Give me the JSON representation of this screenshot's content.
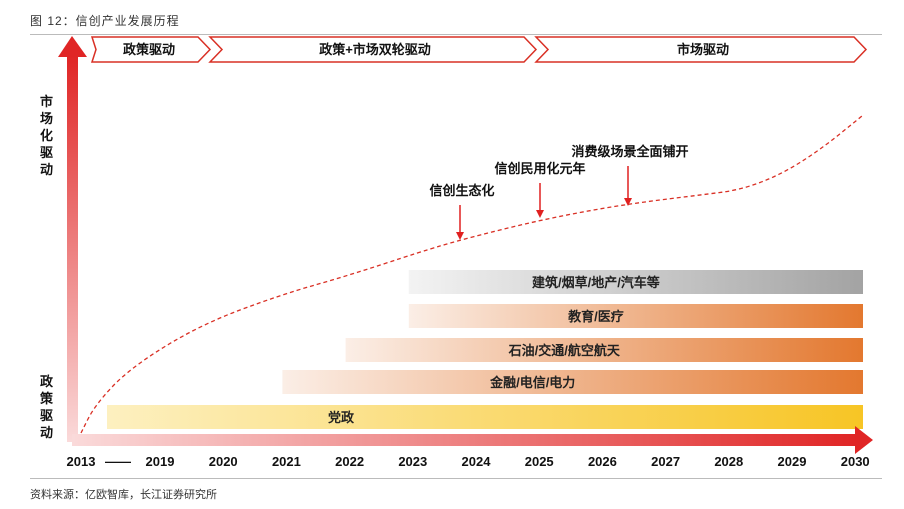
{
  "figure_title": "图 12：信创产业发展历程",
  "source_note": "资料来源：亿欧智库，长江证券研究所",
  "colors": {
    "axis": "#e03030",
    "phase_border": "#d93025",
    "curve": "#d93025",
    "arrow": "#e02020"
  },
  "y_axis_labels": {
    "top": "市场化驱动",
    "bottom": "政策驱动"
  },
  "chart_data": {
    "type": "timeline",
    "x_ticks": [
      "2013",
      "——",
      "2019",
      "2020",
      "2021",
      "2022",
      "2023",
      "2024",
      "2025",
      "2026",
      "2027",
      "2028",
      "2029",
      "2030"
    ],
    "phases": [
      {
        "label": "政策驱动",
        "start": "2013",
        "end": "2020"
      },
      {
        "label": "政策+市场双轮驱动",
        "start": "2020",
        "end": "2025"
      },
      {
        "label": "市场驱动",
        "start": "2025",
        "end": "2030"
      }
    ],
    "bars": [
      {
        "label": "党政",
        "start": "2013",
        "end": "2030",
        "color_start": "#fdf0c0",
        "color_end": "#f7c525"
      },
      {
        "label": "金融/电信/电力",
        "start": "2021",
        "end": "2030",
        "color_start": "#fbeee6",
        "color_end": "#e3782f"
      },
      {
        "label": "石油/交通/航空航天",
        "start": "2022",
        "end": "2030",
        "color_start": "#fbeee6",
        "color_end": "#e3782f"
      },
      {
        "label": "教育/医疗",
        "start": "2023",
        "end": "2030",
        "color_start": "#fbeee6",
        "color_end": "#e3782f"
      },
      {
        "label": "建筑/烟草/地产/汽车等",
        "start": "2023",
        "end": "2030",
        "color_start": "#f3f3f3",
        "color_end": "#a3a3a3"
      }
    ],
    "annotations": [
      {
        "label": "信创生态化",
        "x": 2024.0
      },
      {
        "label": "信创民用化元年",
        "x": 2025.0
      },
      {
        "label": "消费级场景全面铺开",
        "x": 2026.4
      }
    ],
    "curve": "dashed-growth"
  }
}
